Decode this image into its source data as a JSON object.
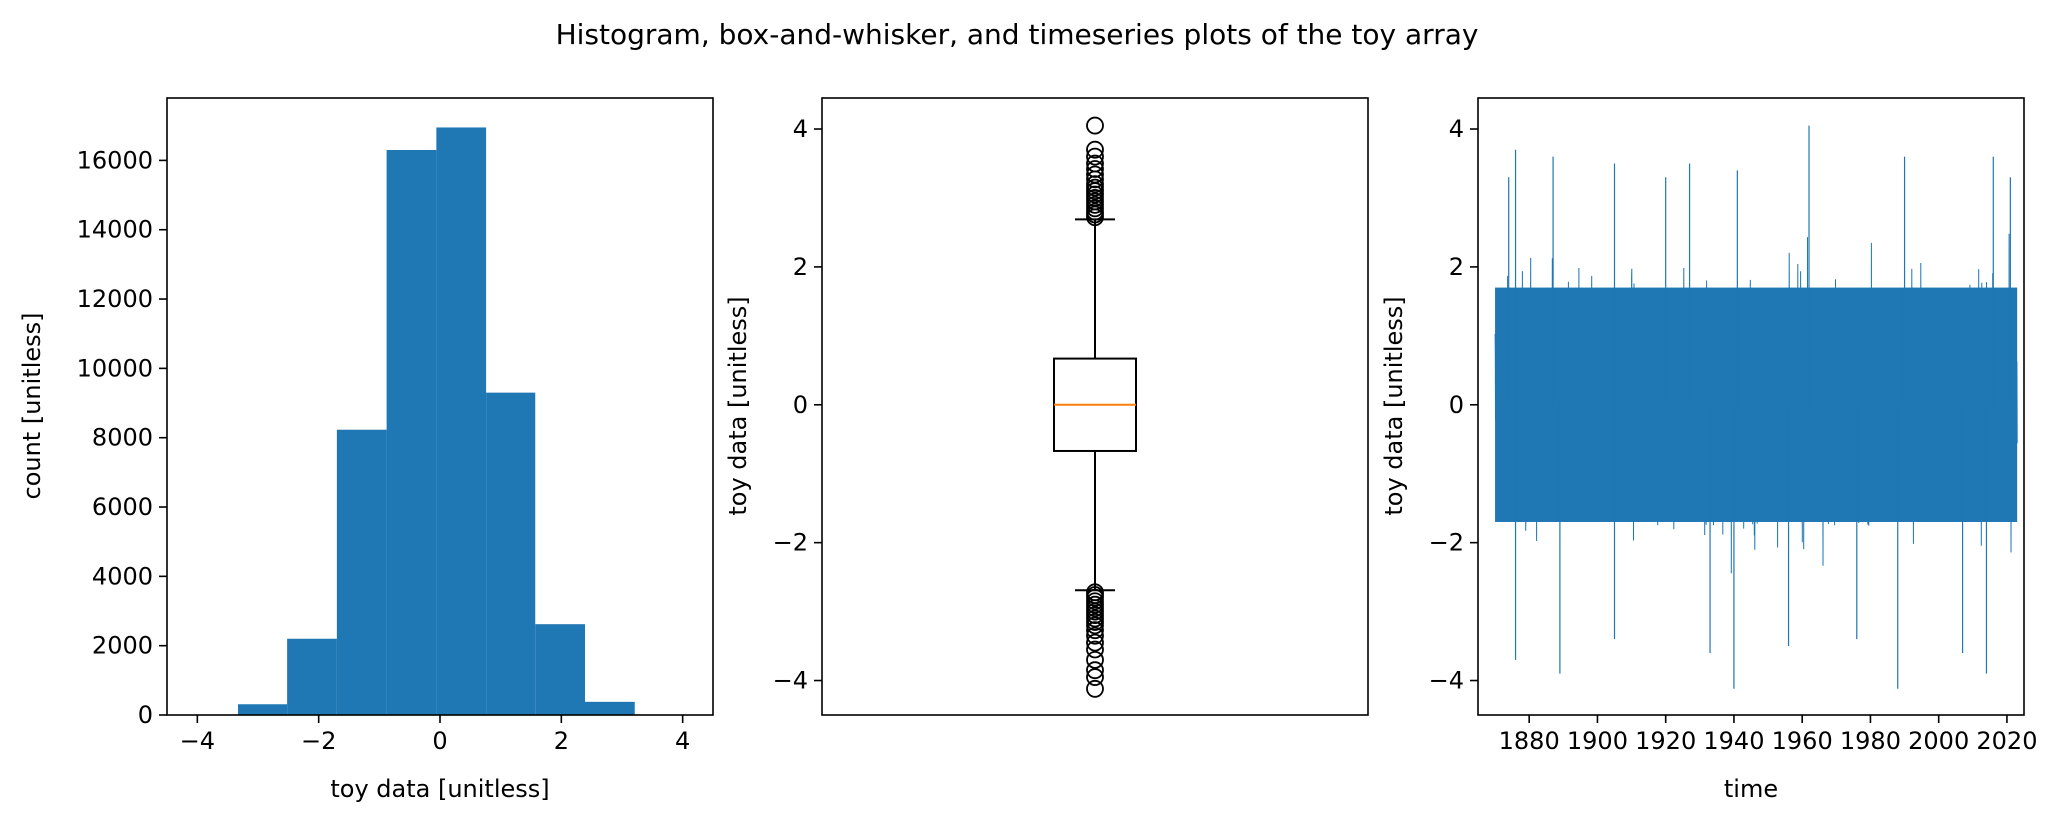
{
  "figure_title": "Histogram, box-and-whisker, and timeseries plots of the toy array",
  "colors": {
    "series": "#1f77b4",
    "median": "#ff7f0e",
    "axes": "#000000"
  },
  "chart_data": [
    {
      "type": "bar",
      "subtype": "histogram",
      "title": "",
      "xlabel": "toy data [unitless]",
      "ylabel": "count [unitless]",
      "xlim": [
        -4.5,
        4.5
      ],
      "ylim": [
        0,
        17800
      ],
      "xticks": [
        -4,
        -2,
        0,
        2,
        4
      ],
      "xtick_labels": [
        "−4",
        "−2",
        "0",
        "2",
        "4"
      ],
      "yticks": [
        0,
        2000,
        4000,
        6000,
        8000,
        10000,
        12000,
        14000,
        16000
      ],
      "ytick_labels": [
        "0",
        "2000",
        "4000",
        "6000",
        "8000",
        "10000",
        "12000",
        "14000",
        "16000"
      ],
      "bin_edges": [
        -4.15,
        -3.33,
        -2.52,
        -1.7,
        -0.88,
        -0.06,
        0.76,
        1.57,
        2.39,
        3.21,
        4.03
      ],
      "counts": [
        0,
        310,
        2200,
        8230,
        16300,
        16950,
        9300,
        2620,
        380,
        0
      ],
      "grid": false
    },
    {
      "type": "box",
      "title": "",
      "xlabel": "",
      "ylabel": "toy data [unitless]",
      "ylim": [
        -4.5,
        4.45
      ],
      "yticks": [
        -4,
        -2,
        0,
        2,
        4
      ],
      "ytick_labels": [
        "−4",
        "−2",
        "0",
        "2",
        "4"
      ],
      "median": 0.0,
      "q1": -0.67,
      "q3": 0.67,
      "whisker_low": -2.69,
      "whisker_high": 2.69,
      "outliers_high": [
        2.72,
        2.76,
        2.8,
        2.85,
        2.9,
        2.95,
        3.0,
        3.05,
        3.1,
        3.15,
        3.2,
        3.27,
        3.34,
        3.42,
        3.5,
        3.6,
        3.7,
        4.05
      ],
      "outliers_low": [
        -2.72,
        -2.76,
        -2.8,
        -2.85,
        -2.9,
        -2.95,
        -3.0,
        -3.05,
        -3.1,
        -3.15,
        -3.2,
        -3.27,
        -3.35,
        -3.45,
        -3.55,
        -3.7,
        -3.85,
        -3.95,
        -4.12
      ],
      "grid": false
    },
    {
      "type": "line",
      "title": "",
      "xlabel": "time",
      "ylabel": "toy data [unitless]",
      "xlim": [
        "1865",
        "2025"
      ],
      "ylim": [
        -4.5,
        4.45
      ],
      "xticks": [
        "1880",
        "1900",
        "1920",
        "1940",
        "1960",
        "1980",
        "2000",
        "2020"
      ],
      "yticks": [
        -4,
        -2,
        0,
        2,
        4
      ],
      "ytick_labels": [
        "−4",
        "−2",
        "0",
        "2",
        "4"
      ],
      "x_range": [
        "1870",
        "2023"
      ],
      "envelope_typical": [
        -2.4,
        2.4
      ],
      "peaks_high": [
        {
          "x": "1874",
          "y": 3.3
        },
        {
          "x": "1876",
          "y": 3.7
        },
        {
          "x": "1887",
          "y": 3.6
        },
        {
          "x": "1905",
          "y": 3.5
        },
        {
          "x": "1920",
          "y": 3.3
        },
        {
          "x": "1927",
          "y": 3.5
        },
        {
          "x": "1941",
          "y": 3.4
        },
        {
          "x": "1962",
          "y": 4.05
        },
        {
          "x": "1990",
          "y": 3.6
        },
        {
          "x": "2016",
          "y": 3.6
        },
        {
          "x": "2021",
          "y": 3.3
        }
      ],
      "peaks_low": [
        {
          "x": "1876",
          "y": -3.7
        },
        {
          "x": "1889",
          "y": -3.9
        },
        {
          "x": "1905",
          "y": -3.4
        },
        {
          "x": "1933",
          "y": -3.6
        },
        {
          "x": "1940",
          "y": -4.12
        },
        {
          "x": "1956",
          "y": -3.5
        },
        {
          "x": "1976",
          "y": -3.4
        },
        {
          "x": "1988",
          "y": -4.12
        },
        {
          "x": "2007",
          "y": -3.6
        },
        {
          "x": "2014",
          "y": -3.9
        }
      ],
      "grid": false
    }
  ]
}
